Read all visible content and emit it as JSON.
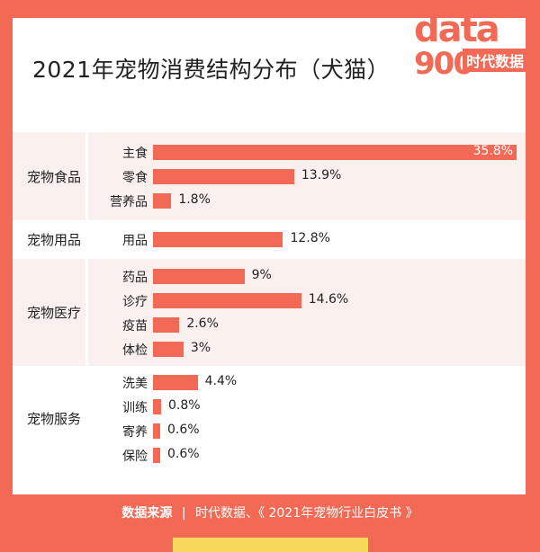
{
  "title": "2021年宠物消费结构分布（犬猫）",
  "logo": {
    "text_top": "data",
    "text_bottom": "时代数据",
    "sub": "900"
  },
  "colors": {
    "accent": "#f26a55",
    "shade": "#faf0ee",
    "highlight": "#f8d85a"
  },
  "footer": {
    "source_label": "数据来源",
    "separator": "|",
    "source_text": "时代数据、《 2021年宠物行业白皮书 》"
  },
  "chart_data": {
    "type": "bar",
    "orientation": "horizontal",
    "title": "2021年宠物消费结构分布（犬猫）",
    "groups": [
      {
        "name": "宠物食品",
        "items": [
          {
            "label": "主食",
            "value": 35.8,
            "text": "35.8%"
          },
          {
            "label": "零食",
            "value": 13.9,
            "text": "13.9%"
          },
          {
            "label": "营养品",
            "value": 1.8,
            "text": "1.8%"
          }
        ]
      },
      {
        "name": "宠物用品",
        "items": [
          {
            "label": "用品",
            "value": 12.8,
            "text": "12.8%"
          }
        ]
      },
      {
        "name": "宠物医疗",
        "items": [
          {
            "label": "药品",
            "value": 9,
            "text": "9%"
          },
          {
            "label": "诊疗",
            "value": 14.6,
            "text": "14.6%"
          },
          {
            "label": "疫苗",
            "value": 2.6,
            "text": "2.6%"
          },
          {
            "label": "体检",
            "value": 3,
            "text": "3%"
          }
        ]
      },
      {
        "name": "宠物服务",
        "items": [
          {
            "label": "洗美",
            "value": 4.4,
            "text": "4.4%"
          },
          {
            "label": "训练",
            "value": 0.8,
            "text": "0.8%"
          },
          {
            "label": "寄养",
            "value": 0.6,
            "text": "0.6%"
          },
          {
            "label": "保险",
            "value": 0.6,
            "text": "0.6%"
          }
        ]
      }
    ],
    "unit": "%"
  }
}
